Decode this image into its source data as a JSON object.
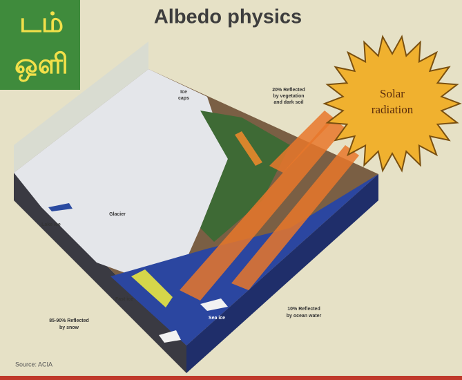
{
  "header": {
    "masthead": [
      "டம்",
      "ஒளி"
    ],
    "title": "Albedo physics"
  },
  "sun": {
    "label": [
      "Solar",
      "radiation"
    ]
  },
  "labels": {
    "ice_caps": [
      "Ice",
      "caps"
    ],
    "vegetation": [
      "20% Reflected",
      "by vegetation",
      "and dark soil"
    ],
    "glacier": [
      "Glacier"
    ],
    "lake_ice": [
      "Lake ice"
    ],
    "fast_ice": [
      "Fast ice"
    ],
    "sea_ice": [
      "Sea ice"
    ],
    "snow": [
      "85-90% Reflected",
      "by snow"
    ],
    "ocean": [
      "10% Reflected",
      "by ocean water"
    ]
  },
  "source": "Source: ACIA"
}
